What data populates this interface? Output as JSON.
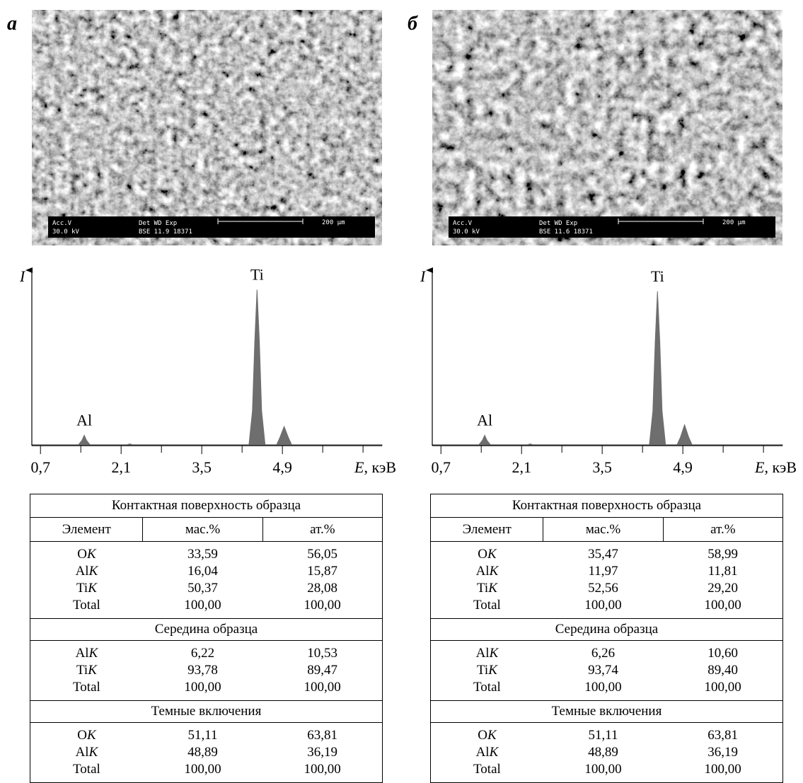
{
  "panels": [
    {
      "label": "а",
      "sem": {
        "acc_label": "Acc.V",
        "acc": "30.0 kV",
        "det_label": "Det  WD  Exp",
        "det": "BSE 11.9 18371",
        "scale": "200 µm"
      },
      "table": {
        "header": [
          "Элемент",
          "мас.%",
          "ат.%"
        ],
        "sections": [
          {
            "title": "Контактная поверхность образца",
            "rows": [
              [
                "OK",
                "33,59",
                "56,05"
              ],
              [
                "AlK",
                "16,04",
                "15,87"
              ],
              [
                "TiK",
                "50,37",
                "28,08"
              ],
              [
                "Total",
                "100,00",
                "100,00"
              ]
            ]
          },
          {
            "title": "Середина образца",
            "rows": [
              [
                "AlK",
                "6,22",
                "10,53"
              ],
              [
                "TiK",
                "93,78",
                "89,47"
              ],
              [
                "Total",
                "100,00",
                "100,00"
              ]
            ]
          },
          {
            "title": "Темные включения",
            "rows": [
              [
                "OK",
                "51,11",
                "63,81"
              ],
              [
                "AlK",
                "48,89",
                "36,19"
              ],
              [
                "Total",
                "100,00",
                "100,00"
              ]
            ]
          }
        ]
      }
    },
    {
      "label": "б",
      "sem": {
        "acc_label": "Acc.V",
        "acc": "30.0 kV",
        "det_label": "Det  WD  Exp",
        "det": "BSE 11.6 18371",
        "scale": "200 µm"
      },
      "table": {
        "header": [
          "Элемент",
          "мас.%",
          "ат.%"
        ],
        "sections": [
          {
            "title": "Контактная поверхность образца",
            "rows": [
              [
                "OK",
                "35,47",
                "58,99"
              ],
              [
                "AlK",
                "11,97",
                "11,81"
              ],
              [
                "TiK",
                "52,56",
                "29,20"
              ],
              [
                "Total",
                "100,00",
                "100,00"
              ]
            ]
          },
          {
            "title": "Середина образца",
            "rows": [
              [
                "AlK",
                "6,26",
                "10,60"
              ],
              [
                "TiK",
                "93,74",
                "89,40"
              ],
              [
                "Total",
                "100,00",
                "100,00"
              ]
            ]
          },
          {
            "title": "Темные включения",
            "rows": [
              [
                "OK",
                "51,11",
                "63,81"
              ],
              [
                "AlK",
                "48,89",
                "36,19"
              ],
              [
                "Total",
                "100,00",
                "100,00"
              ]
            ]
          }
        ]
      }
    }
  ],
  "chart_data": [
    {
      "type": "area",
      "y_label": "I",
      "x_label": "E, кэВ",
      "color": "#6e6e6e",
      "xlim": [
        0.55,
        6.63
      ],
      "ylim": [
        0,
        100
      ],
      "xticks": [
        {
          "value": 0.7,
          "label": "0,7"
        },
        {
          "value": 2.1,
          "label": "2,1"
        },
        {
          "value": 3.5,
          "label": "3,5"
        },
        {
          "value": 4.9,
          "label": "4,9"
        }
      ],
      "minor_xticks": [
        1.4,
        2.8,
        4.2,
        5.6,
        6.3
      ],
      "x": [
        0.55,
        1.36,
        1.42,
        1.46,
        1.5,
        1.56,
        2.2,
        2.25,
        2.3,
        4.32,
        4.38,
        4.42,
        4.46,
        4.5,
        4.54,
        4.6,
        4.8,
        4.86,
        4.93,
        5.0,
        5.06,
        6.63
      ],
      "values": [
        0.5,
        0.5,
        3,
        6,
        3,
        0.5,
        0.5,
        1,
        0.5,
        0.5,
        20,
        60,
        90,
        60,
        20,
        0.5,
        0.5,
        5,
        11,
        5,
        0.5,
        0.5
      ],
      "annotations": [
        {
          "text": "Al",
          "x": 1.46
        },
        {
          "text": "Ti",
          "x": 4.46
        }
      ]
    },
    {
      "type": "area",
      "y_label": "I",
      "x_label": "E, кэВ",
      "color": "#6e6e6e",
      "xlim": [
        0.55,
        6.63
      ],
      "ylim": [
        0,
        100
      ],
      "xticks": [
        {
          "value": 0.7,
          "label": "0,7"
        },
        {
          "value": 2.1,
          "label": "2,1"
        },
        {
          "value": 3.5,
          "label": "3,5"
        },
        {
          "value": 4.9,
          "label": "4,9"
        }
      ],
      "minor_xticks": [
        1.4,
        2.8,
        4.2,
        5.6,
        6.3
      ],
      "x": [
        0.55,
        1.36,
        1.42,
        1.46,
        1.5,
        1.56,
        2.2,
        2.25,
        2.3,
        4.32,
        4.38,
        4.42,
        4.46,
        4.5,
        4.54,
        4.6,
        4.8,
        4.86,
        4.93,
        5.0,
        5.06,
        6.63
      ],
      "values": [
        0.5,
        0.5,
        3,
        6,
        3,
        0.5,
        0.5,
        1,
        0.5,
        0.5,
        20,
        60,
        89,
        60,
        20,
        0.5,
        0.5,
        5,
        12,
        5,
        0.5,
        0.5
      ],
      "annotations": [
        {
          "text": "Al",
          "x": 1.46
        },
        {
          "text": "Ti",
          "x": 4.46
        }
      ]
    }
  ]
}
